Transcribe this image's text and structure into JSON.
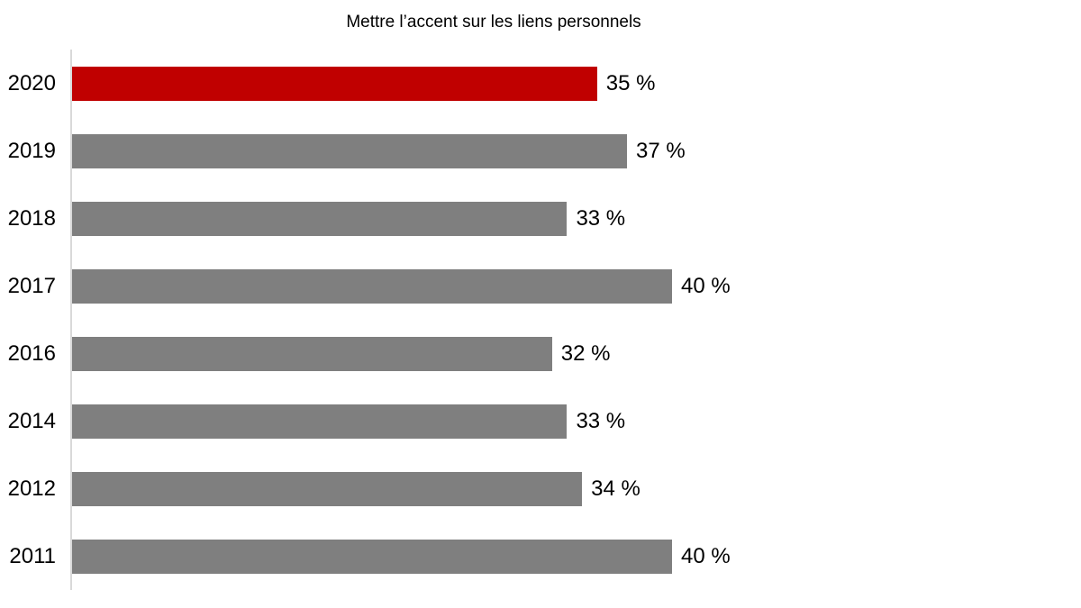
{
  "chart_data": {
    "type": "bar",
    "orientation": "horizontal",
    "title": "Mettre l’accent sur les liens personnels",
    "categories": [
      "2020",
      "2019",
      "2018",
      "2017",
      "2016",
      "2014",
      "2012",
      "2011"
    ],
    "values": [
      35,
      37,
      33,
      40,
      32,
      33,
      34,
      40
    ],
    "value_labels": [
      "35 %",
      "37 %",
      "33 %",
      "40 %",
      "32 %",
      "33 %",
      "34 %",
      "40 %"
    ],
    "xlim": [
      0,
      40
    ],
    "highlight_category": "2020",
    "legend": "none",
    "grid": "off",
    "colors": {
      "highlight_bar": "#C00000",
      "default_bar": "#7F7F7F",
      "axis_line": "#D9D9D9",
      "text": "#000000"
    }
  }
}
